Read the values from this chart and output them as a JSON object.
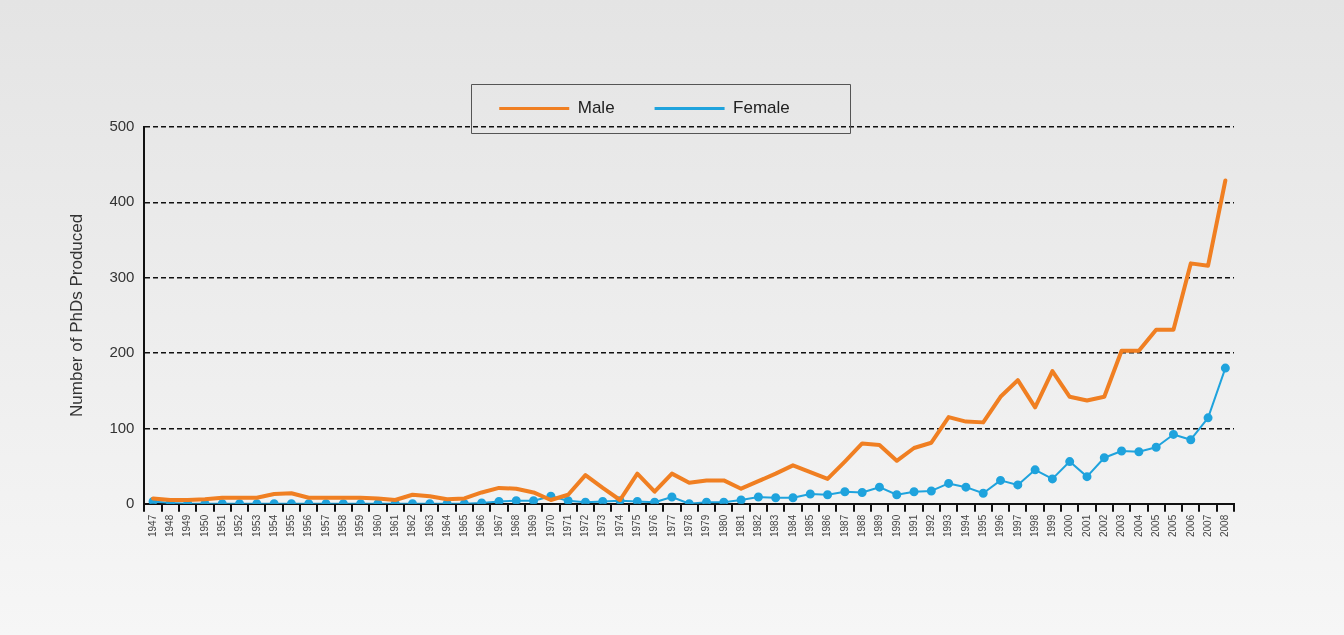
{
  "chart_data": {
    "type": "line",
    "ylabel": "Number of PhDs Produced",
    "categories": [
      "1947",
      "1948",
      "1949",
      "1950",
      "1951",
      "1952",
      "1953",
      "1954",
      "1955",
      "1956",
      "1957",
      "1958",
      "1959",
      "1960",
      "1961",
      "1962",
      "1963",
      "1964",
      "1965",
      "1966",
      "1967",
      "1968",
      "1969",
      "1970",
      "1971",
      "1972",
      "1973",
      "1974",
      "1975",
      "1976",
      "1977",
      "1978",
      "1979",
      "1980",
      "1981",
      "1982",
      "1983",
      "1984",
      "1985",
      "1986",
      "1987",
      "1988",
      "1989",
      "1990",
      "1991",
      "1992",
      "1993",
      "1994",
      "1995",
      "1996",
      "1997",
      "1998",
      "1999",
      "2000",
      "2001",
      "2002",
      "2003",
      "2004",
      "2005",
      "2005",
      "2006",
      "2007",
      "2008"
    ],
    "series": [
      {
        "name": "Male",
        "color": "#f07f22",
        "marker": "none",
        "values": [
          7,
          5,
          5,
          6,
          8,
          8,
          8,
          13,
          14,
          8,
          8,
          8,
          8,
          7,
          5,
          12,
          10,
          6,
          7,
          15,
          21,
          20,
          15,
          5,
          12,
          38,
          21,
          5,
          40,
          16,
          40,
          28,
          31,
          31,
          20,
          30,
          40,
          51,
          42,
          33,
          56,
          80,
          78,
          57,
          74,
          81,
          115,
          109,
          108,
          142,
          164,
          128,
          176,
          142,
          137,
          142,
          203,
          203,
          231,
          231,
          319,
          316,
          429
        ]
      },
      {
        "name": "Female",
        "color": "#1fa3dd",
        "marker": "circle",
        "values": [
          3,
          1,
          0,
          0,
          0,
          0,
          0,
          0,
          0,
          0,
          0,
          0,
          0,
          0,
          0,
          0,
          0,
          0,
          0,
          1,
          3,
          4,
          4,
          10,
          4,
          2,
          3,
          4,
          3,
          2,
          9,
          0,
          2,
          2,
          5,
          9,
          8,
          8,
          13,
          12,
          16,
          15,
          22,
          12,
          16,
          17,
          27,
          22,
          14,
          31,
          25,
          45,
          33,
          56,
          36,
          61,
          70,
          69,
          75,
          92,
          85,
          114,
          180
        ]
      }
    ],
    "ylim": [
      0,
      500
    ],
    "yticks": [
      0,
      100,
      200,
      300,
      400,
      500
    ],
    "grid": "y",
    "legend": "top"
  }
}
